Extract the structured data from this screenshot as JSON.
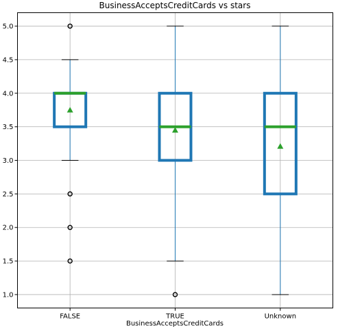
{
  "chart_data": {
    "type": "box",
    "title": "BusinessAcceptsCreditCards vs stars",
    "xlabel": "BusinessAcceptsCreditCards",
    "ylabel": "",
    "ylim": [
      0.8,
      5.2
    ],
    "yticks": [
      "1.0",
      "1.5",
      "2.0",
      "2.5",
      "3.0",
      "3.5",
      "4.0",
      "4.5",
      "5.0"
    ],
    "categories": [
      "FALSE",
      "TRUE",
      "Unknown"
    ],
    "grid": true,
    "boxes": [
      {
        "category": "FALSE",
        "whisker_low": 3.0,
        "q1": 3.5,
        "median": 4.0,
        "q3": 4.0,
        "whisker_high": 4.5,
        "mean": 3.75,
        "outliers": [
          5.0,
          2.5,
          2.0,
          1.5
        ]
      },
      {
        "category": "TRUE",
        "whisker_low": 1.5,
        "q1": 3.0,
        "median": 3.5,
        "q3": 4.0,
        "whisker_high": 5.0,
        "mean": 3.45,
        "outliers": [
          1.0
        ]
      },
      {
        "category": "Unknown",
        "whisker_low": 1.0,
        "q1": 2.5,
        "median": 3.5,
        "q3": 4.0,
        "whisker_high": 5.0,
        "mean": 3.21,
        "outliers": []
      }
    ],
    "colors": {
      "box": "#1f77b4",
      "median": "#2ca02c",
      "mean": "#2ca02c",
      "whisker": "#1f77b4",
      "cap": "#000000",
      "outlier": "#000000",
      "grid": "#b0b0b0",
      "axes": "#000000"
    }
  }
}
